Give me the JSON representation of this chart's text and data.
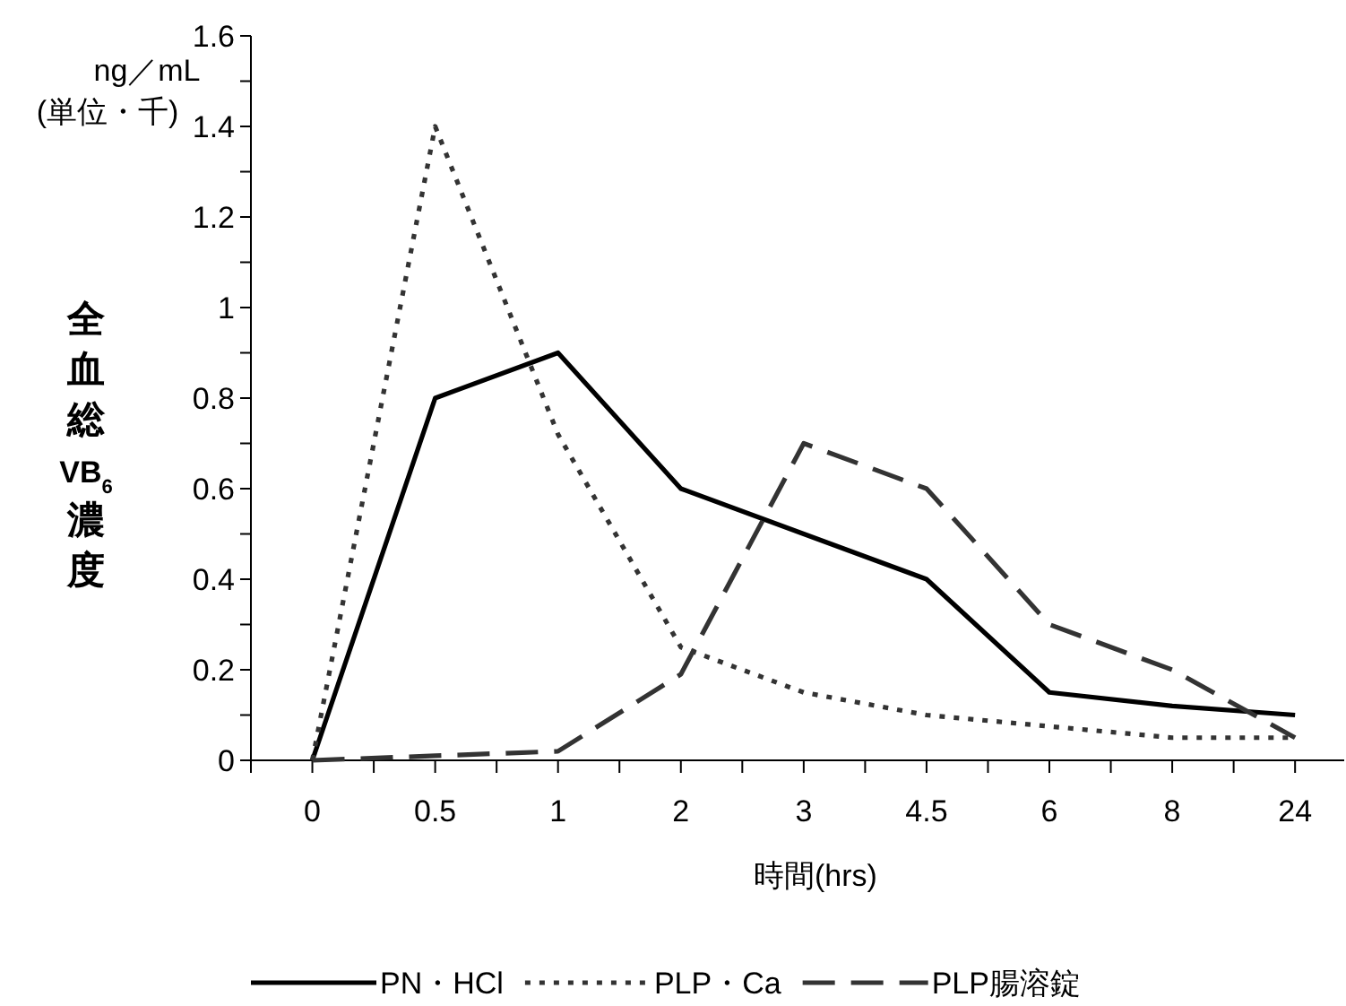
{
  "chart_data": {
    "type": "line",
    "xlabel": "時間(hrs)",
    "ylabel": "全血総VB$_{6}$濃度",
    "annotations": [
      "ng／mL",
      "(単位・千)"
    ],
    "categories": [
      "0",
      "0.5",
      "1",
      "2",
      "3",
      "4.5",
      "6",
      "8",
      "24"
    ],
    "ylim": [
      0,
      1.6
    ],
    "yticks": [
      0,
      {
        "value": 0.1,
        "label": null
      },
      0.2,
      {
        "value": 0.3,
        "label": null
      },
      0.4,
      {
        "value": 0.5,
        "label": null
      },
      0.6,
      {
        "value": 0.7,
        "label": null
      },
      0.8,
      {
        "value": 0.9,
        "label": null
      },
      1,
      {
        "value": 1.1,
        "label": null
      },
      1.2,
      {
        "value": 1.3,
        "label": null
      },
      1.4,
      {
        "value": 1.5,
        "label": null
      },
      1.6
    ],
    "legend": "bottom",
    "marker": "none",
    "series": [
      {
        "name": "PN・HCl",
        "color": "#000000",
        "line_style": "solid",
        "values": [
          0,
          0.8,
          0.9,
          0.6,
          0.5,
          0.4,
          0.15,
          0.12,
          0.1
        ]
      },
      {
        "name": "PLP・Ca",
        "color": "#333333",
        "line_style": "dotted",
        "values": [
          0,
          1.4,
          0.72,
          0.25,
          0.15,
          0.1,
          0.075,
          0.05,
          0.05
        ]
      },
      {
        "name": "PLP腸溶錠",
        "color": "#333333",
        "line_style": "dashed",
        "values": [
          0,
          0.01,
          0.02,
          0.19,
          0.7,
          0.6,
          0.3,
          0.2,
          0.05
        ]
      }
    ]
  }
}
